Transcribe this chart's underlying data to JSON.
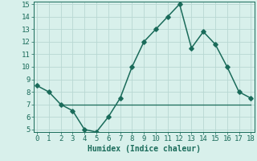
{
  "x": [
    0,
    1,
    2,
    3,
    4,
    5,
    6,
    7,
    8,
    9,
    10,
    11,
    12,
    13,
    14,
    15,
    16,
    17,
    18
  ],
  "y_curve": [
    8.5,
    8.0,
    7.0,
    6.5,
    5.0,
    4.8,
    6.0,
    7.5,
    10.0,
    12.0,
    13.0,
    14.0,
    15.0,
    11.5,
    12.8,
    11.8,
    10.0,
    8.0,
    7.5
  ],
  "y_hline": 7.0,
  "hline_x_start": 2,
  "hline_x_end": 18,
  "line_color": "#1a6b5a",
  "bg_color": "#d8f0eb",
  "grid_color": "#b8d8d3",
  "xlabel": "Humidex (Indice chaleur)",
  "ylim_min": 5,
  "ylim_max": 15,
  "xlim_min": 0,
  "xlim_max": 18,
  "yticks": [
    5,
    6,
    7,
    8,
    9,
    10,
    11,
    12,
    13,
    14,
    15
  ],
  "xticks": [
    0,
    1,
    2,
    3,
    4,
    5,
    6,
    7,
    8,
    9,
    10,
    11,
    12,
    13,
    14,
    15,
    16,
    17,
    18
  ],
  "xlabel_fontsize": 7.0,
  "tick_fontsize": 6.5,
  "linewidth": 1.1,
  "marker": "D",
  "markersize": 2.8
}
